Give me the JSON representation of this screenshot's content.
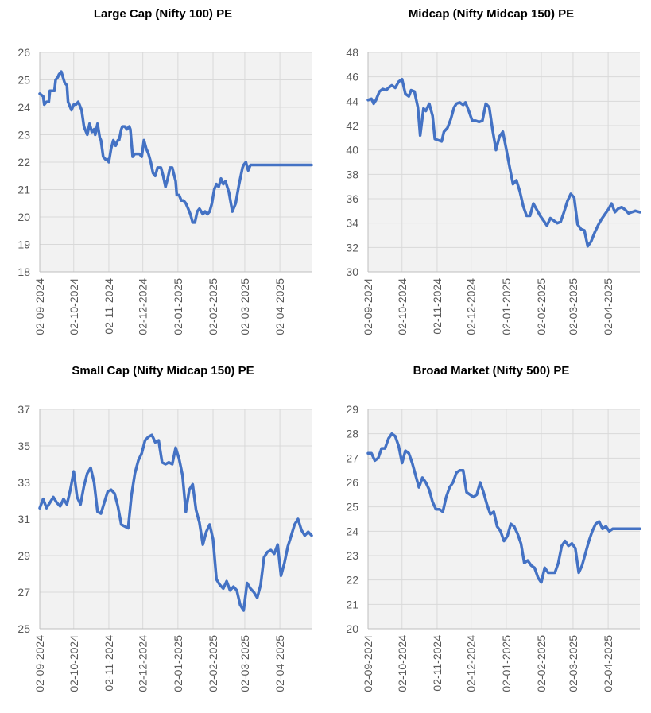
{
  "chart_data": [
    {
      "type": "line",
      "title": "Large Cap (Nifty 100) PE",
      "ylim": [
        18,
        26
      ],
      "yticks": [
        "18",
        "19",
        "20",
        "21",
        "22",
        "23",
        "24",
        "25",
        "26"
      ],
      "xlim": [
        "2024-09-02",
        "2025-04-30"
      ],
      "xticks": [
        "02-09-2024",
        "02-10-2024",
        "02-11-2024",
        "02-12-2024",
        "02-01-2025",
        "02-02-2025",
        "02-03-2025",
        "02-04-2025"
      ],
      "grid": true,
      "series_color": "#4472C4",
      "x": [
        "2024-09-02",
        "2024-09-05",
        "2024-09-06",
        "2024-09-08",
        "2024-09-10",
        "2024-09-11",
        "2024-09-13",
        "2024-09-15",
        "2024-09-16",
        "2024-09-18",
        "2024-09-19",
        "2024-09-21",
        "2024-09-24",
        "2024-09-26",
        "2024-09-27",
        "2024-09-30",
        "2024-10-02",
        "2024-10-04",
        "2024-10-06",
        "2024-10-07",
        "2024-10-09",
        "2024-10-11",
        "2024-10-12",
        "2024-10-14",
        "2024-10-16",
        "2024-10-18",
        "2024-10-20",
        "2024-10-21",
        "2024-10-23",
        "2024-10-25",
        "2024-10-26",
        "2024-10-28",
        "2024-10-30",
        "2024-11-01",
        "2024-11-02",
        "2024-11-04",
        "2024-11-06",
        "2024-11-08",
        "2024-11-10",
        "2024-11-11",
        "2024-11-13",
        "2024-11-14",
        "2024-11-16",
        "2024-11-18",
        "2024-11-20",
        "2024-11-21",
        "2024-11-23",
        "2024-11-25",
        "2024-11-27",
        "2024-11-29",
        "2024-12-01",
        "2024-12-03",
        "2024-12-05",
        "2024-12-07",
        "2024-12-09",
        "2024-12-11",
        "2024-12-13",
        "2024-12-15",
        "2024-12-16",
        "2024-12-18",
        "2024-12-20",
        "2024-12-22",
        "2024-12-24",
        "2024-12-26",
        "2024-12-28",
        "2024-12-31",
        "2025-01-01",
        "2025-01-03",
        "2025-01-05",
        "2025-01-07",
        "2025-01-09",
        "2025-01-11",
        "2025-01-13",
        "2025-01-15",
        "2025-01-17",
        "2025-01-19",
        "2025-01-21",
        "2025-01-24",
        "2025-01-26",
        "2025-01-28",
        "2025-01-30",
        "2025-02-01",
        "2025-02-03",
        "2025-02-05",
        "2025-02-07",
        "2025-02-09",
        "2025-02-11",
        "2025-02-13",
        "2025-02-16",
        "2025-02-19",
        "2025-02-22",
        "2025-02-25",
        "2025-02-28",
        "2025-03-01",
        "2025-03-03",
        "2025-03-05",
        "2025-03-07",
        "2025-03-09",
        "2025-03-11",
        "2025-03-13",
        "2025-03-15",
        "2025-03-17",
        "2025-03-19",
        "2025-03-21",
        "2025-03-23",
        "2025-03-25",
        "2025-03-27",
        "2025-03-29",
        "2025-04-01",
        "2025-04-03",
        "2025-04-05",
        "2025-04-07",
        "2025-04-09",
        "2025-04-11",
        "2025-04-13",
        "2025-04-15",
        "2025-04-17",
        "2025-04-19",
        "2025-04-21",
        "2025-04-23",
        "2025-04-25",
        "2025-04-27",
        "2025-04-30"
      ],
      "values": [
        24.5,
        24.4,
        24.1,
        24.2,
        24.2,
        24.6,
        24.6,
        24.6,
        25.0,
        25.1,
        25.2,
        25.3,
        24.9,
        24.8,
        24.2,
        23.9,
        24.1,
        24.1,
        24.2,
        24.1,
        23.9,
        23.3,
        23.2,
        23.0,
        23.4,
        23.1,
        23.2,
        23.0,
        23.4,
        22.9,
        22.8,
        22.2,
        22.1,
        22.1,
        22.0,
        22.5,
        22.8,
        22.6,
        22.8,
        22.8,
        23.2,
        23.3,
        23.3,
        23.2,
        23.3,
        23.2,
        22.2,
        22.3,
        22.3,
        22.3,
        22.2,
        22.8,
        22.5,
        22.3,
        22.0,
        21.6,
        21.5,
        21.8,
        21.8,
        21.8,
        21.5,
        21.1,
        21.4,
        21.8,
        21.8,
        21.3,
        20.8,
        20.8,
        20.6,
        20.6,
        20.5,
        20.3,
        20.1,
        19.8,
        19.8,
        20.2,
        20.3,
        20.1,
        20.2,
        20.1,
        20.2,
        20.5,
        21.0,
        21.2,
        21.1,
        21.4,
        21.2,
        21.3,
        20.9,
        20.2,
        20.5,
        21.2,
        21.8,
        21.9,
        22.0,
        21.7,
        21.9,
        21.9,
        21.9,
        21.9,
        21.9,
        21.9,
        21.9,
        21.9,
        21.9,
        21.9,
        21.9,
        21.9,
        21.9,
        21.9,
        21.9,
        21.9,
        21.9,
        21.9,
        21.9,
        21.9,
        21.9,
        21.9,
        21.9,
        21.9,
        21.9,
        21.9,
        21.9
      ]
    },
    {
      "type": "line",
      "title": "Midcap (Nifty Midcap 150) PE",
      "ylim": [
        30,
        48
      ],
      "yticks": [
        "30",
        "32",
        "34",
        "36",
        "38",
        "40",
        "42",
        "44",
        "46",
        "48"
      ],
      "xlim": [
        "2024-09-02",
        "2025-04-30"
      ],
      "xticks": [
        "02-09-2024",
        "02-10-2024",
        "02-11-2024",
        "02-12-2024",
        "02-01-2025",
        "02-02-2025",
        "02-03-2025",
        "02-04-2025"
      ],
      "grid": true,
      "series_color": "#4472C4",
      "x": [
        "2024-09-02",
        "2024-09-05",
        "2024-09-07",
        "2024-09-09",
        "2024-09-12",
        "2024-09-15",
        "2024-09-18",
        "2024-09-20",
        "2024-09-23",
        "2024-09-26",
        "2024-09-29",
        "2024-10-02",
        "2024-10-05",
        "2024-10-08",
        "2024-10-10",
        "2024-10-13",
        "2024-10-16",
        "2024-10-18",
        "2024-10-21",
        "2024-10-23",
        "2024-10-26",
        "2024-10-29",
        "2024-10-31",
        "2024-11-03",
        "2024-11-06",
        "2024-11-08",
        "2024-11-11",
        "2024-11-14",
        "2024-11-17",
        "2024-11-19",
        "2024-11-22",
        "2024-11-25",
        "2024-11-27",
        "2024-11-30",
        "2024-12-03",
        "2024-12-06",
        "2024-12-09",
        "2024-12-12",
        "2024-12-15",
        "2024-12-18",
        "2024-12-21",
        "2024-12-24",
        "2024-12-27",
        "2024-12-30",
        "2025-01-02",
        "2025-01-05",
        "2025-01-08",
        "2025-01-11",
        "2025-01-14",
        "2025-01-17",
        "2025-01-20",
        "2025-01-23",
        "2025-01-26",
        "2025-01-29",
        "2025-02-01",
        "2025-02-04",
        "2025-02-07",
        "2025-02-10",
        "2025-02-13",
        "2025-02-16",
        "2025-02-19",
        "2025-02-22",
        "2025-02-25",
        "2025-02-28",
        "2025-03-03",
        "2025-03-06",
        "2025-03-09",
        "2025-03-12",
        "2025-03-15",
        "2025-03-18",
        "2025-03-21",
        "2025-03-24",
        "2025-03-27",
        "2025-03-30",
        "2025-04-02",
        "2025-04-05",
        "2025-04-08",
        "2025-04-11",
        "2025-04-14",
        "2025-04-17",
        "2025-04-20",
        "2025-04-23",
        "2025-04-26",
        "2025-04-30"
      ],
      "values": [
        44.1,
        44.2,
        43.8,
        44.1,
        44.8,
        45.0,
        44.9,
        45.1,
        45.3,
        45.1,
        45.6,
        45.8,
        44.6,
        44.4,
        44.9,
        44.8,
        43.5,
        41.2,
        43.4,
        43.2,
        43.8,
        42.8,
        40.9,
        40.8,
        40.7,
        41.5,
        41.8,
        42.5,
        43.5,
        43.8,
        43.9,
        43.7,
        43.9,
        43.2,
        42.4,
        42.4,
        42.3,
        42.4,
        43.8,
        43.5,
        41.6,
        40.0,
        41.1,
        41.5,
        40.1,
        38.6,
        37.2,
        37.5,
        36.6,
        35.4,
        34.6,
        34.6,
        35.6,
        35.1,
        34.6,
        34.2,
        33.8,
        34.4,
        34.2,
        34.0,
        34.1,
        34.9,
        35.8,
        36.4,
        36.1,
        33.9,
        33.5,
        33.4,
        32.1,
        32.5,
        33.2,
        33.8,
        34.3,
        34.7,
        35.1,
        35.6,
        34.9,
        35.2,
        35.3,
        35.1,
        34.8,
        34.9,
        35.0,
        34.9
      ]
    },
    {
      "type": "line",
      "title": "Small Cap (Nifty Midcap 150) PE",
      "ylim": [
        25,
        37
      ],
      "yticks": [
        "25",
        "27",
        "29",
        "31",
        "33",
        "35",
        "37"
      ],
      "xlim": [
        "2024-09-02",
        "2025-04-30"
      ],
      "xticks": [
        "02-09-2024",
        "02-10-2024",
        "02-11-2024",
        "02-12-2024",
        "02-01-2025",
        "02-02-2025",
        "02-03-2025",
        "02-04-2025"
      ],
      "grid": true,
      "series_color": "#4472C4",
      "x": [
        "2024-09-02",
        "2024-09-05",
        "2024-09-08",
        "2024-09-11",
        "2024-09-14",
        "2024-09-17",
        "2024-09-20",
        "2024-09-23",
        "2024-09-26",
        "2024-09-29",
        "2024-10-02",
        "2024-10-05",
        "2024-10-08",
        "2024-10-11",
        "2024-10-14",
        "2024-10-17",
        "2024-10-20",
        "2024-10-23",
        "2024-10-26",
        "2024-10-29",
        "2024-11-01",
        "2024-11-04",
        "2024-11-07",
        "2024-11-10",
        "2024-11-13",
        "2024-11-16",
        "2024-11-19",
        "2024-11-22",
        "2024-11-25",
        "2024-11-28",
        "2024-12-01",
        "2024-12-04",
        "2024-12-07",
        "2024-12-10",
        "2024-12-13",
        "2024-12-16",
        "2024-12-19",
        "2024-12-22",
        "2024-12-25",
        "2024-12-28",
        "2024-12-31",
        "2025-01-03",
        "2025-01-06",
        "2025-01-09",
        "2025-01-12",
        "2025-01-15",
        "2025-01-18",
        "2025-01-21",
        "2025-01-24",
        "2025-01-27",
        "2025-01-30",
        "2025-02-02",
        "2025-02-05",
        "2025-02-08",
        "2025-02-11",
        "2025-02-14",
        "2025-02-17",
        "2025-02-20",
        "2025-02-23",
        "2025-02-26",
        "2025-03-01",
        "2025-03-04",
        "2025-03-07",
        "2025-03-10",
        "2025-03-13",
        "2025-03-16",
        "2025-03-19",
        "2025-03-22",
        "2025-03-25",
        "2025-03-28",
        "2025-03-31",
        "2025-04-03",
        "2025-04-06",
        "2025-04-09",
        "2025-04-12",
        "2025-04-15",
        "2025-04-18",
        "2025-04-21",
        "2025-04-24",
        "2025-04-27",
        "2025-04-30"
      ],
      "values": [
        31.6,
        32.1,
        31.6,
        31.9,
        32.2,
        31.9,
        31.7,
        32.1,
        31.8,
        32.6,
        33.6,
        32.2,
        31.8,
        32.8,
        33.5,
        33.8,
        33.0,
        31.4,
        31.3,
        31.9,
        32.5,
        32.6,
        32.4,
        31.7,
        30.7,
        30.6,
        30.5,
        32.3,
        33.5,
        34.2,
        34.6,
        35.3,
        35.5,
        35.6,
        35.2,
        35.3,
        34.1,
        34.0,
        34.1,
        34.0,
        34.9,
        34.3,
        33.4,
        31.4,
        32.6,
        32.9,
        31.5,
        30.8,
        29.6,
        30.3,
        30.7,
        29.9,
        27.7,
        27.4,
        27.2,
        27.6,
        27.1,
        27.3,
        27.1,
        26.3,
        26.0,
        27.5,
        27.2,
        27.0,
        26.7,
        27.4,
        28.9,
        29.2,
        29.3,
        29.1,
        29.6,
        27.9,
        28.6,
        29.5,
        30.1,
        30.7,
        31.0,
        30.4,
        30.1,
        30.3,
        30.1
      ]
    },
    {
      "type": "line",
      "title": "Broad Market (Nifty 500) PE",
      "ylim": [
        20,
        29
      ],
      "yticks": [
        "20",
        "21",
        "22",
        "23",
        "24",
        "25",
        "26",
        "27",
        "28",
        "29"
      ],
      "xlim": [
        "2024-09-02",
        "2025-04-30"
      ],
      "xticks": [
        "02-09-2024",
        "02-10-2024",
        "02-11-2024",
        "02-12-2024",
        "02-01-2025",
        "02-02-2025",
        "02-03-2025",
        "02-04-2025"
      ],
      "grid": true,
      "series_color": "#4472C4",
      "x": [
        "2024-09-02",
        "2024-09-05",
        "2024-09-08",
        "2024-09-11",
        "2024-09-14",
        "2024-09-17",
        "2024-09-20",
        "2024-09-23",
        "2024-09-26",
        "2024-09-29",
        "2024-10-02",
        "2024-10-05",
        "2024-10-08",
        "2024-10-11",
        "2024-10-14",
        "2024-10-17",
        "2024-10-20",
        "2024-10-23",
        "2024-10-26",
        "2024-10-29",
        "2024-11-01",
        "2024-11-04",
        "2024-11-07",
        "2024-11-10",
        "2024-11-13",
        "2024-11-16",
        "2024-11-19",
        "2024-11-22",
        "2024-11-25",
        "2024-11-28",
        "2024-12-01",
        "2024-12-04",
        "2024-12-07",
        "2024-12-10",
        "2024-12-13",
        "2024-12-16",
        "2024-12-19",
        "2024-12-22",
        "2024-12-25",
        "2024-12-28",
        "2024-12-31",
        "2025-01-03",
        "2025-01-06",
        "2025-01-09",
        "2025-01-12",
        "2025-01-15",
        "2025-01-18",
        "2025-01-21",
        "2025-01-24",
        "2025-01-27",
        "2025-01-30",
        "2025-02-02",
        "2025-02-05",
        "2025-02-08",
        "2025-02-11",
        "2025-02-14",
        "2025-02-17",
        "2025-02-20",
        "2025-02-23",
        "2025-02-26",
        "2025-03-01",
        "2025-03-04",
        "2025-03-07",
        "2025-03-10",
        "2025-03-13",
        "2025-03-16",
        "2025-03-19",
        "2025-03-22",
        "2025-03-25",
        "2025-03-28",
        "2025-03-31",
        "2025-04-03",
        "2025-04-06",
        "2025-04-09",
        "2025-04-12",
        "2025-04-15",
        "2025-04-18",
        "2025-04-21",
        "2025-04-24",
        "2025-04-27",
        "2025-04-30"
      ],
      "values": [
        27.2,
        27.2,
        26.9,
        27.0,
        27.4,
        27.4,
        27.8,
        28.0,
        27.9,
        27.5,
        26.8,
        27.3,
        27.2,
        26.8,
        26.3,
        25.8,
        26.2,
        26.0,
        25.7,
        25.2,
        24.9,
        24.9,
        24.8,
        25.4,
        25.8,
        26.0,
        26.4,
        26.5,
        26.5,
        25.6,
        25.5,
        25.4,
        25.5,
        26.0,
        25.6,
        25.1,
        24.7,
        24.8,
        24.2,
        24.0,
        23.6,
        23.8,
        24.3,
        24.2,
        23.9,
        23.5,
        22.7,
        22.8,
        22.6,
        22.5,
        22.1,
        21.9,
        22.5,
        22.3,
        22.3,
        22.3,
        22.7,
        23.4,
        23.6,
        23.4,
        23.5,
        23.3,
        22.3,
        22.6,
        23.1,
        23.6,
        24.0,
        24.3,
        24.4,
        24.1,
        24.2,
        24.0,
        24.1,
        24.1,
        24.1,
        24.1,
        24.1,
        24.1,
        24.1,
        24.1,
        24.1
      ]
    }
  ]
}
